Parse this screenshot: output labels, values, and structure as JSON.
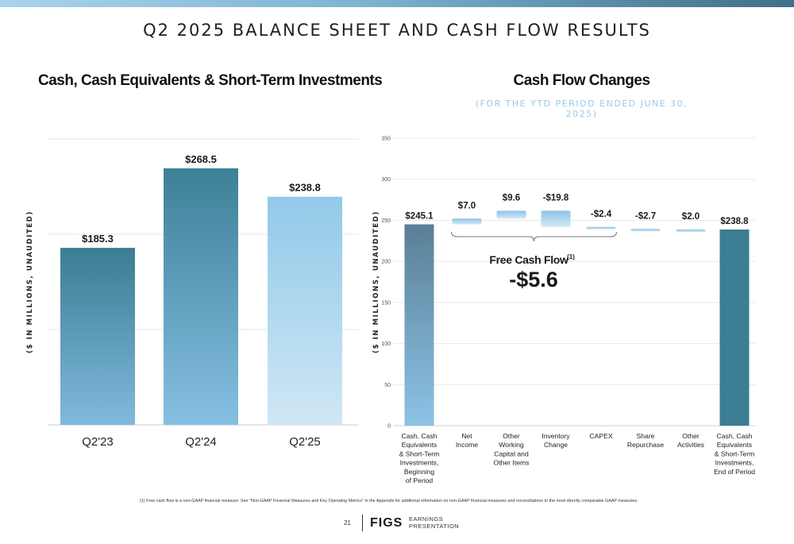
{
  "page": {
    "title": "Q2 2025 BALANCE SHEET AND CASH FLOW RESULTS",
    "footnote": "(1)  Free cash flow is a  non-GAAP financial measure. See \"Non-GAAP Financial Measures and Key Operating Metrics\" in the Appendix for additional information on non-GAAP financial measures and reconciliations to the most directly comparable GAAP measures.",
    "page_number": "21",
    "logo": "FIGS",
    "logo_sub_line1": "EARNINGS",
    "logo_sub_line2": "PRESENTATION"
  },
  "colors": {
    "dark_teal": "#3b7d92",
    "mid_blue": "#5f9fc4",
    "light_blue": "#9ccbe8",
    "pale_blue": "#cde6f4",
    "accent_subtitle": "#9dc8e6"
  },
  "chart_data": [
    {
      "type": "bar",
      "title": "Cash, Cash Equivalents & Short-Term Investments",
      "ylabel": "($ IN MILLIONS, UNAUDITED)",
      "categories": [
        "Q2'23",
        "Q2'24",
        "Q2'25"
      ],
      "values": [
        185.3,
        268.5,
        238.8
      ],
      "data_labels": [
        "$185.3",
        "$268.5",
        "$238.8"
      ],
      "grid": true
    },
    {
      "type": "bar",
      "subtype": "waterfall",
      "title": "Cash Flow Changes",
      "subtitle": "(FOR THE YTD PERIOD ENDED JUNE 30, 2025)",
      "ylabel": "($ IN MILLIONS, UNAUDITED)",
      "ylim": [
        0,
        350
      ],
      "yticks": [
        0,
        50,
        100,
        150,
        200,
        250,
        300,
        350
      ],
      "grid": true,
      "categories": [
        [
          "Cash, Cash",
          "Equivalents",
          "& Short-Term",
          "Investments,",
          "Beginning",
          "of Period"
        ],
        [
          "Net",
          "Income"
        ],
        [
          "Other",
          "Working",
          "Capital and",
          "Other Items"
        ],
        [
          "Inventory",
          "Change"
        ],
        [
          "CAPEX"
        ],
        [
          "Share",
          "Repurchase"
        ],
        [
          "Other",
          "Activities"
        ],
        [
          "Cash, Cash",
          "Equivalents",
          "& Short-Term",
          "Investments,",
          "End of Period"
        ]
      ],
      "values": [
        245.1,
        7.0,
        9.6,
        -19.8,
        -2.4,
        -2.7,
        2.0,
        238.8
      ],
      "data_labels": [
        "$245.1",
        "$7.0",
        "$9.6",
        "-$19.8",
        "-$2.4",
        "-$2.7",
        "$2.0",
        "$238.8"
      ],
      "annotation": {
        "label": "Free Cash Flow",
        "superscript": "(1)",
        "value": "-$5.6"
      }
    }
  ]
}
